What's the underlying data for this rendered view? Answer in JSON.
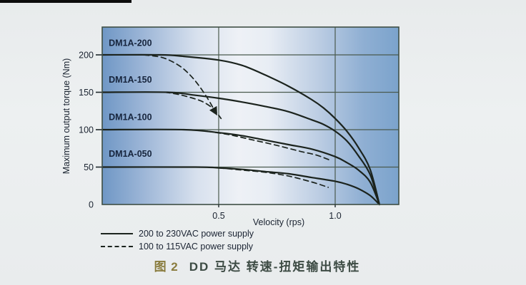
{
  "figure": {
    "caption_prefix": "图 2",
    "caption_text": "DD 马达  转速-扭矩输出特性"
  },
  "palette": {
    "page_background": "#e9eced",
    "plot_gradient": [
      "#6f97c5",
      "#9ab4d6",
      "#d8e1ee",
      "#eef1f6",
      "#e8edf4",
      "#bccde3",
      "#8fafd3",
      "#7ba3cc"
    ],
    "grid_color": "#4a5a4e",
    "frame_color": "#3f4f45",
    "curve_color": "#1b231d",
    "tick_text_color": "#1a2330",
    "curve_label_color": "#17253d",
    "caption_prefix_color": "#8a7c3e",
    "caption_text_color": "#3d4b44"
  },
  "chart_data": {
    "type": "line",
    "title": "",
    "xlabel": "Velocity (rps)",
    "ylabel": "Maximum output torque (Nm)",
    "xlim": [
      0,
      1.27
    ],
    "ylim": [
      0,
      237
    ],
    "x_ticks": [
      0.5,
      1.0
    ],
    "x_tick_labels": [
      "0.5",
      "1.0"
    ],
    "y_ticks": [
      0,
      50,
      100,
      150,
      200
    ],
    "grid": true,
    "legend_position": "bottom-left",
    "legend": [
      {
        "label": "200 to 230VAC power supply",
        "style": "solid"
      },
      {
        "label": "100 to 115VAC power supply",
        "style": "dashed"
      }
    ],
    "curve_labels": [
      {
        "text": "DM1A-200",
        "v": 0.028,
        "torque": 212
      },
      {
        "text": "DM1A-150",
        "v": 0.028,
        "torque": 163
      },
      {
        "text": "DM1A-100",
        "v": 0.028,
        "torque": 113
      },
      {
        "text": "DM1A-050",
        "v": 0.028,
        "torque": 64
      }
    ],
    "series": [
      {
        "name": "DM1A-200",
        "power_supply": "200 to 230VAC",
        "style": "solid",
        "points": [
          [
            0,
            200
          ],
          [
            0.25,
            200
          ],
          [
            0.35,
            198
          ],
          [
            0.5,
            193
          ],
          [
            0.6,
            186
          ],
          [
            0.7,
            173
          ],
          [
            0.8,
            158
          ],
          [
            0.9,
            140
          ],
          [
            0.95,
            129
          ],
          [
            1.0,
            115
          ],
          [
            1.05,
            98
          ],
          [
            1.1,
            76
          ],
          [
            1.15,
            47
          ],
          [
            1.19,
            0
          ]
        ]
      },
      {
        "name": "DM1A-150",
        "power_supply": "200 to 230VAC",
        "style": "solid",
        "points": [
          [
            0,
            150
          ],
          [
            0.28,
            150
          ],
          [
            0.4,
            146
          ],
          [
            0.5,
            142
          ],
          [
            0.6,
            137
          ],
          [
            0.7,
            131
          ],
          [
            0.8,
            124
          ],
          [
            0.9,
            113
          ],
          [
            0.95,
            107
          ],
          [
            1.0,
            98
          ],
          [
            1.05,
            85
          ],
          [
            1.1,
            65
          ],
          [
            1.15,
            40
          ],
          [
            1.19,
            0
          ]
        ]
      },
      {
        "name": "DM1A-100",
        "power_supply": "200 to 230VAC",
        "style": "solid",
        "points": [
          [
            0,
            100
          ],
          [
            0.35,
            100
          ],
          [
            0.5,
            96
          ],
          [
            0.6,
            92
          ],
          [
            0.7,
            86
          ],
          [
            0.8,
            80
          ],
          [
            0.9,
            74
          ],
          [
            1.0,
            64
          ],
          [
            1.05,
            56
          ],
          [
            1.1,
            46
          ],
          [
            1.15,
            30
          ],
          [
            1.19,
            0
          ]
        ]
      },
      {
        "name": "DM1A-050",
        "power_supply": "200 to 230VAC",
        "style": "solid",
        "points": [
          [
            0,
            50
          ],
          [
            0.4,
            50
          ],
          [
            0.5,
            49
          ],
          [
            0.6,
            47
          ],
          [
            0.7,
            44
          ],
          [
            0.8,
            41
          ],
          [
            0.9,
            36
          ],
          [
            1.0,
            31
          ],
          [
            1.05,
            27
          ],
          [
            1.1,
            21
          ],
          [
            1.15,
            12
          ],
          [
            1.19,
            0
          ]
        ]
      },
      {
        "name": "DM1A-200",
        "power_supply": "100 to 115VAC",
        "style": "dashed",
        "arrow": true,
        "points": [
          [
            0.18,
            200
          ],
          [
            0.25,
            197
          ],
          [
            0.3,
            191
          ],
          [
            0.35,
            181
          ],
          [
            0.4,
            165
          ],
          [
            0.45,
            143
          ],
          [
            0.49,
            121
          ]
        ]
      },
      {
        "name": "DM1A-150",
        "power_supply": "100 to 115VAC",
        "style": "dashed",
        "points": [
          [
            0.27,
            150
          ],
          [
            0.33,
            147
          ],
          [
            0.4,
            141
          ],
          [
            0.44,
            136
          ],
          [
            0.48,
            127
          ],
          [
            0.51,
            115
          ]
        ]
      },
      {
        "name": "DM1A-100",
        "power_supply": "100 to 115VAC",
        "style": "dashed",
        "points": [
          [
            0.45,
            98
          ],
          [
            0.55,
            93
          ],
          [
            0.65,
            86
          ],
          [
            0.75,
            79
          ],
          [
            0.85,
            71
          ],
          [
            0.92,
            66
          ],
          [
            0.98,
            59
          ]
        ]
      },
      {
        "name": "DM1A-050",
        "power_supply": "100 to 115VAC",
        "style": "dashed",
        "points": [
          [
            0.5,
            49
          ],
          [
            0.6,
            46
          ],
          [
            0.7,
            43
          ],
          [
            0.8,
            38
          ],
          [
            0.9,
            30
          ],
          [
            0.97,
            23
          ]
        ]
      }
    ]
  }
}
